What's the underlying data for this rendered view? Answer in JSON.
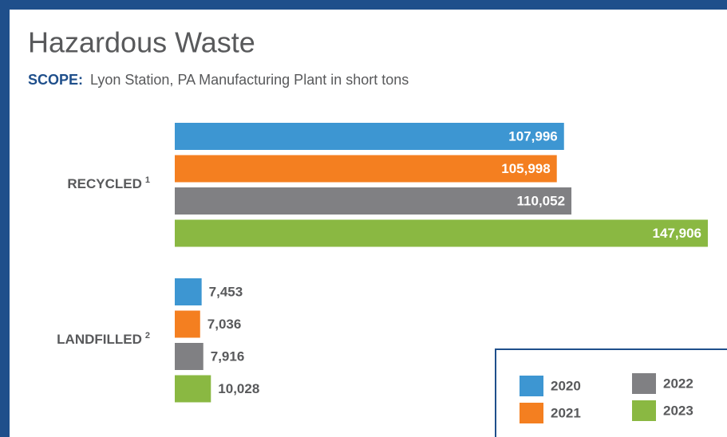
{
  "chart_data": {
    "type": "bar",
    "orientation": "horizontal",
    "title": "Hazardous Waste",
    "subtitle_label": "SCOPE:",
    "subtitle": "Lyon Station, PA Manufacturing Plant in short tons",
    "categories": [
      "RECYCLED",
      "LANDFILLED"
    ],
    "category_footnotes": [
      "1",
      "2"
    ],
    "series": [
      {
        "name": "2020",
        "color": "#3d96d2",
        "values": [
          107996,
          7453
        ],
        "value_labels": [
          "107,996",
          "7,453"
        ]
      },
      {
        "name": "2021",
        "color": "#f47f20",
        "values": [
          105998,
          7036
        ],
        "value_labels": [
          "105,998",
          "7,036"
        ]
      },
      {
        "name": "2022",
        "color": "#808083",
        "values": [
          110052,
          7916
        ],
        "value_labels": [
          "110,052",
          "7,916"
        ]
      },
      {
        "name": "2023",
        "color": "#8ab842",
        "values": [
          147906,
          10028
        ],
        "value_labels": [
          "147,906",
          "10,028"
        ]
      }
    ]
  }
}
